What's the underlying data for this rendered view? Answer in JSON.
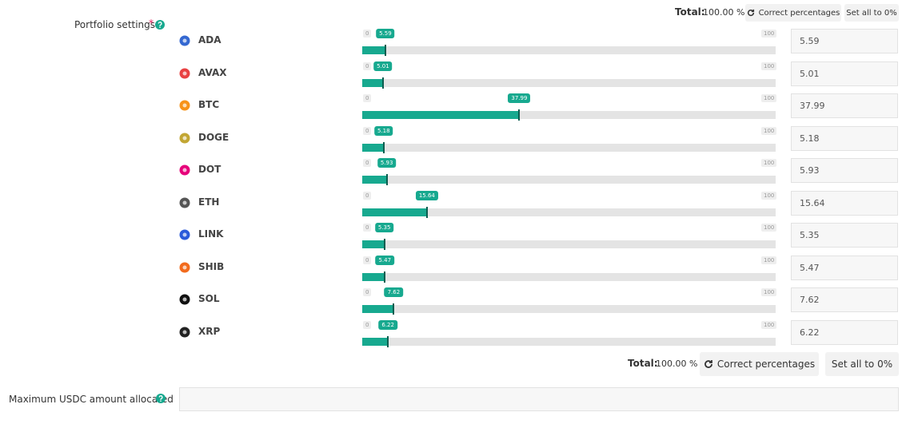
{
  "form": {
    "portfolio_label": "Portfolio settings",
    "required_mark": "*",
    "total_label": "Total:",
    "total_value": "100.00 %",
    "correct_button": "Correct percentages",
    "reset_button": "Set all to 0%",
    "slider": {
      "min": 0,
      "max": 100
    },
    "assets": [
      {
        "name": "ADA",
        "value": 5.59
      },
      {
        "name": "AVAX",
        "value": 5.01
      },
      {
        "name": "BTC",
        "value": 37.99
      },
      {
        "name": "DOGE",
        "value": 5.18
      },
      {
        "name": "DOT",
        "value": 5.93
      },
      {
        "name": "ETH",
        "value": 15.64
      },
      {
        "name": "LINK",
        "value": 5.35
      },
      {
        "name": "SHIB",
        "value": 5.47
      },
      {
        "name": "SOL",
        "value": 7.62
      },
      {
        "name": "XRP",
        "value": 6.22
      }
    ],
    "usdc_label": "Maximum USDC amount allocated"
  }
}
